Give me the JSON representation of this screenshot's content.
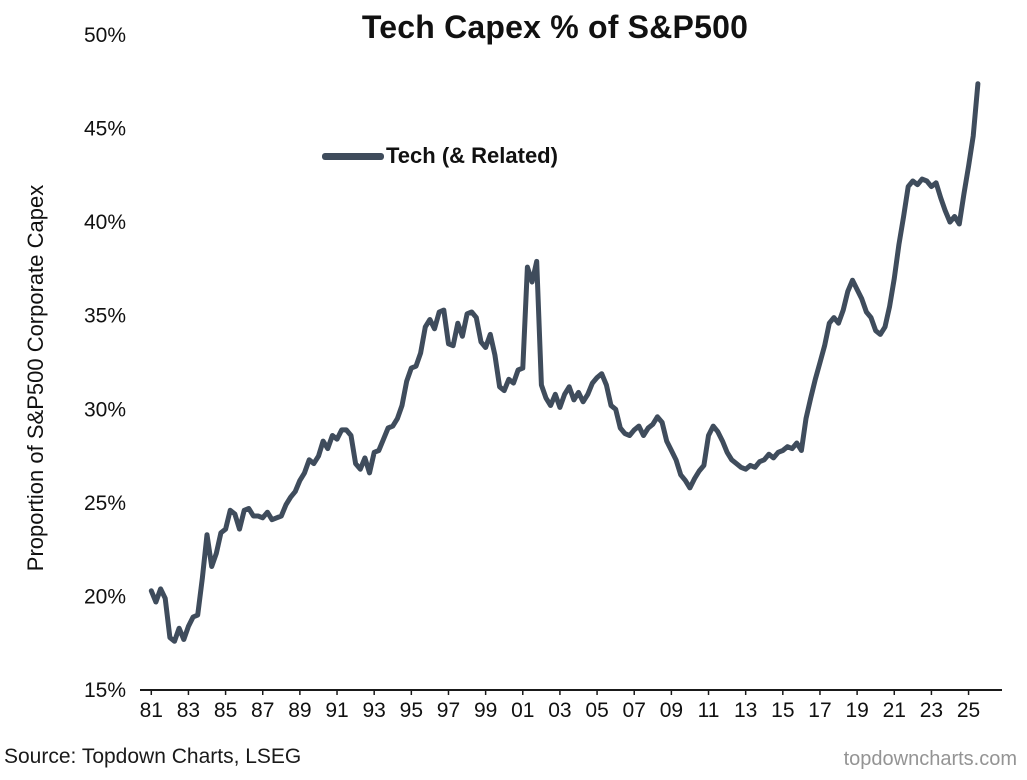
{
  "footer": {
    "source": "Source: Topdown Charts, LSEG",
    "watermark": "topdowncharts.com"
  },
  "colors": {
    "series_line": "#3F4C5C",
    "axis": "#1a1a1a",
    "tick_label": "#111111",
    "watermark": "#949494"
  },
  "chart_data": {
    "type": "line",
    "title": "Tech Capex % of S&P500",
    "xlabel": "",
    "ylabel": "Proportion of S&P500 Corporate Capex",
    "grid": false,
    "legend_position": "upper-left-inside",
    "ylim": [
      15,
      50
    ],
    "xlim": [
      1980.5,
      2026.8
    ],
    "y_ticks": [
      {
        "value": 15,
        "label": "15%"
      },
      {
        "value": 20,
        "label": "20%"
      },
      {
        "value": 25,
        "label": "25%"
      },
      {
        "value": 30,
        "label": "30%"
      },
      {
        "value": 35,
        "label": "35%"
      },
      {
        "value": 40,
        "label": "40%"
      },
      {
        "value": 45,
        "label": "45%"
      },
      {
        "value": 50,
        "label": "50%"
      }
    ],
    "x_ticks": [
      {
        "value": 1981,
        "label": "81"
      },
      {
        "value": 1983,
        "label": "83"
      },
      {
        "value": 1985,
        "label": "85"
      },
      {
        "value": 1987,
        "label": "87"
      },
      {
        "value": 1989,
        "label": "89"
      },
      {
        "value": 1991,
        "label": "91"
      },
      {
        "value": 1993,
        "label": "93"
      },
      {
        "value": 1995,
        "label": "95"
      },
      {
        "value": 1997,
        "label": "97"
      },
      {
        "value": 1999,
        "label": "99"
      },
      {
        "value": 2001,
        "label": "01"
      },
      {
        "value": 2003,
        "label": "03"
      },
      {
        "value": 2005,
        "label": "05"
      },
      {
        "value": 2007,
        "label": "07"
      },
      {
        "value": 2009,
        "label": "09"
      },
      {
        "value": 2011,
        "label": "11"
      },
      {
        "value": 2013,
        "label": "13"
      },
      {
        "value": 2015,
        "label": "15"
      },
      {
        "value": 2017,
        "label": "17"
      },
      {
        "value": 2019,
        "label": "19"
      },
      {
        "value": 2021,
        "label": "21"
      },
      {
        "value": 2023,
        "label": "23"
      },
      {
        "value": 2025,
        "label": "25"
      }
    ],
    "series": [
      {
        "name": "Tech (& Related)",
        "color": "#3F4C5C",
        "start_year": 1981,
        "points_per_year": 4,
        "values": [
          20.3,
          19.7,
          20.4,
          19.9,
          17.8,
          17.6,
          18.3,
          17.7,
          18.4,
          18.9,
          19.0,
          21.0,
          23.3,
          21.6,
          22.3,
          23.4,
          23.6,
          24.6,
          24.4,
          23.6,
          24.6,
          24.7,
          24.3,
          24.3,
          24.2,
          24.5,
          24.1,
          24.2,
          24.3,
          24.9,
          25.3,
          25.6,
          26.2,
          26.6,
          27.3,
          27.1,
          27.5,
          28.3,
          27.9,
          28.6,
          28.4,
          28.9,
          28.9,
          28.6,
          27.1,
          26.8,
          27.4,
          26.6,
          27.7,
          27.8,
          28.4,
          29.0,
          29.1,
          29.5,
          30.2,
          31.5,
          32.2,
          32.3,
          33.0,
          34.4,
          34.8,
          34.3,
          35.2,
          35.3,
          33.5,
          33.4,
          34.6,
          33.9,
          35.1,
          35.2,
          34.9,
          33.6,
          33.3,
          34.0,
          32.9,
          31.2,
          31.0,
          31.6,
          31.4,
          32.1,
          32.2,
          37.6,
          36.8,
          37.9,
          31.3,
          30.6,
          30.2,
          30.8,
          30.1,
          30.8,
          31.2,
          30.5,
          30.9,
          30.4,
          30.8,
          31.4,
          31.7,
          31.9,
          31.3,
          30.2,
          30.0,
          29.0,
          28.7,
          28.6,
          28.9,
          29.1,
          28.6,
          29.0,
          29.2,
          29.6,
          29.3,
          28.3,
          27.8,
          27.3,
          26.5,
          26.2,
          25.8,
          26.3,
          26.7,
          27.0,
          28.6,
          29.1,
          28.8,
          28.3,
          27.7,
          27.3,
          27.1,
          26.9,
          26.8,
          27.0,
          26.9,
          27.2,
          27.3,
          27.6,
          27.4,
          27.7,
          27.8,
          28.0,
          27.9,
          28.2,
          27.8,
          29.5,
          30.6,
          31.6,
          32.5,
          33.4,
          34.6,
          34.9,
          34.6,
          35.3,
          36.3,
          36.9,
          36.4,
          35.9,
          35.2,
          34.9,
          34.2,
          34.0,
          34.4,
          35.5,
          37.0,
          38.8,
          40.3,
          41.9,
          42.2,
          42.0,
          42.3,
          42.2,
          41.9,
          42.1,
          41.3,
          40.6,
          40.0,
          40.3,
          39.9,
          41.5,
          43.0,
          44.6,
          47.4
        ]
      }
    ]
  }
}
